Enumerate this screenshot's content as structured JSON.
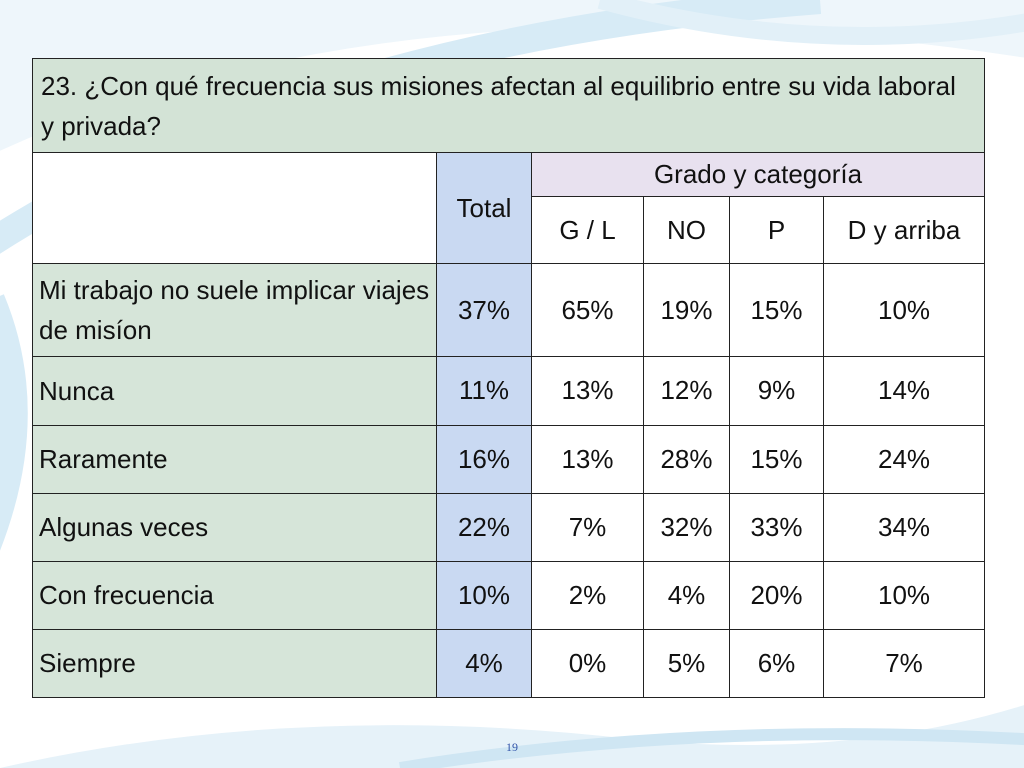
{
  "slide": {
    "title": "23. ¿Con qué frecuencia sus misiones afectan al equilibrio entre su vida laboral y privada?",
    "page_number": "19"
  },
  "table": {
    "total_header": "Total",
    "group_header": "Grado y categoría",
    "sub_headers": [
      "G / L",
      "NO",
      "P",
      "D y arriba"
    ],
    "rows": [
      {
        "label": "Mi trabajo no suele implicar viajes de misíon",
        "total": "37%",
        "values": [
          "65%",
          "19%",
          "15%",
          "10%"
        ]
      },
      {
        "label": "Nunca",
        "total": "11%",
        "values": [
          "13%",
          "12%",
          "9%",
          "14%"
        ]
      },
      {
        "label": "Raramente",
        "total": "16%",
        "values": [
          "13%",
          "28%",
          "15%",
          "24%"
        ]
      },
      {
        "label": "Algunas veces",
        "total": "22%",
        "values": [
          "7%",
          "32%",
          "33%",
          "34%"
        ]
      },
      {
        "label": "Con frecuencia",
        "total": "10%",
        "values": [
          "2%",
          "4%",
          "20%",
          "10%"
        ]
      },
      {
        "label": "Siempre",
        "total": "4%",
        "values": [
          "0%",
          "5%",
          "6%",
          "7%"
        ]
      }
    ]
  },
  "colors": {
    "title_bg": "#d3e3d6",
    "label_bg": "#d6e5d9",
    "total_bg": "#c9d9f2",
    "group_bg": "#e8e1ef",
    "border": "#222222"
  }
}
